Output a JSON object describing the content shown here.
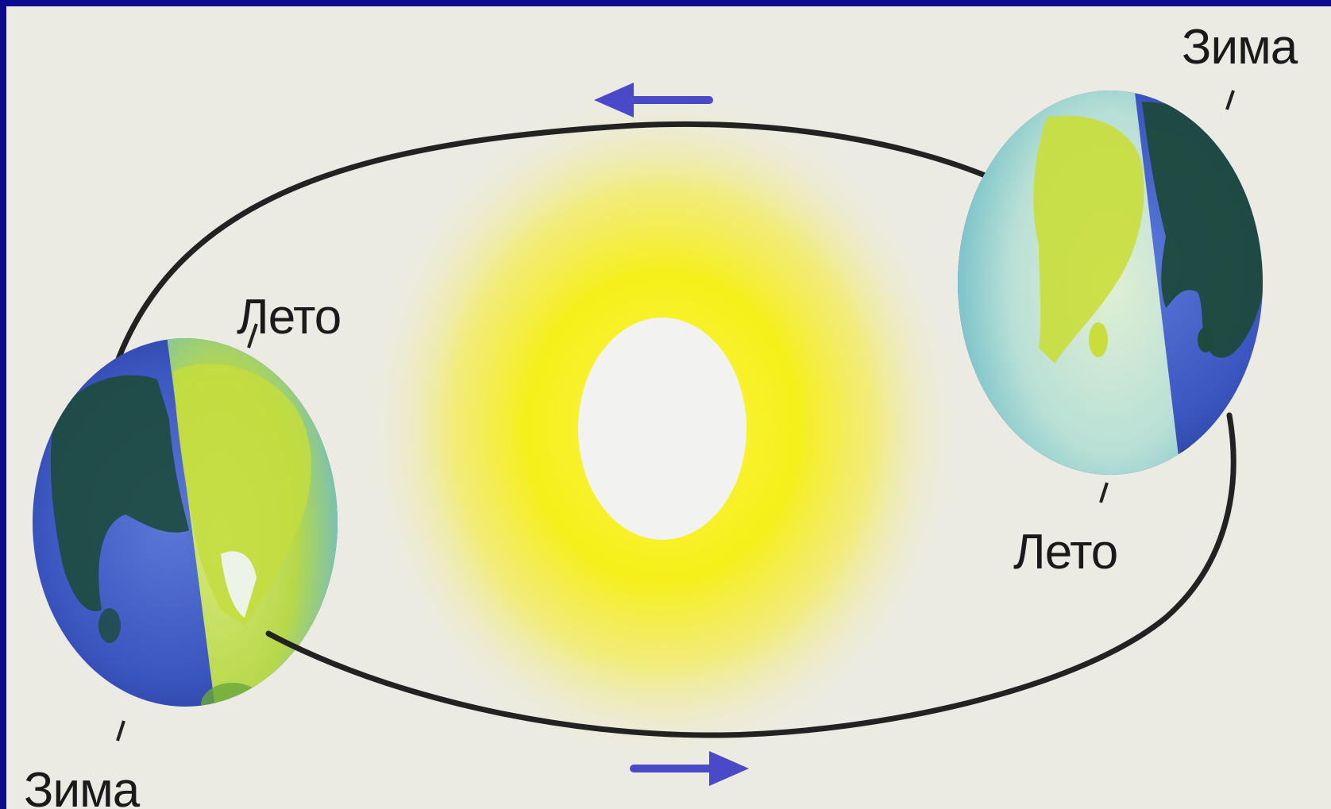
{
  "diagram": {
    "left_earth": {
      "upper_label": "Лето",
      "lower_label": "Зима"
    },
    "right_earth": {
      "upper_label": "Зима",
      "lower_label": "Лето"
    },
    "colors": {
      "frame": "#0b0b90",
      "paper": "#ecebe3",
      "sun_glow": "#f6ef1a",
      "sun_core": "#f2f2f0",
      "orbit": "#222222",
      "arrow": "#4a4ac8",
      "ocean": "#3e5fc4",
      "land_light": "#c9e03a",
      "land_dark": "#1d4a3c"
    },
    "icons": {
      "sun": "sun-icon",
      "earth": "earth-icon",
      "direction_arrow": "arrow-icon"
    }
  }
}
